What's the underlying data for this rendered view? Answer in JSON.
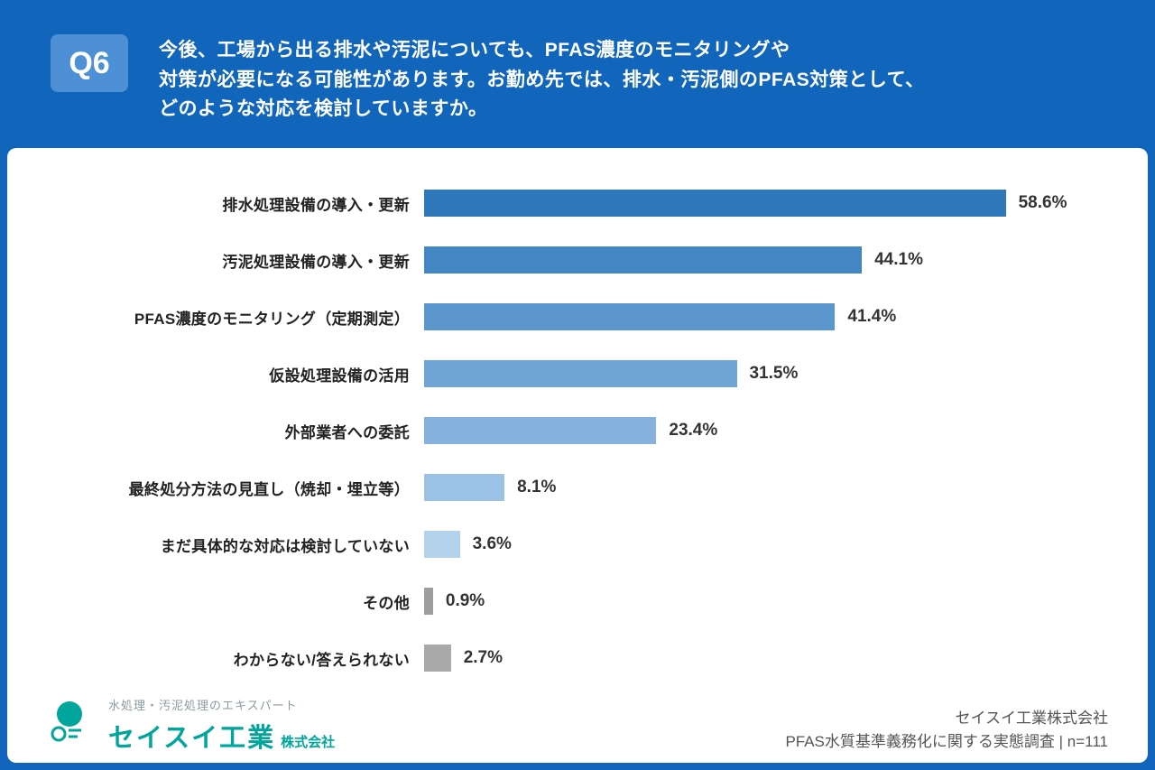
{
  "header": {
    "q_label": "Q6",
    "question": "今後、工場から出る排水や汚泥についても、PFAS濃度のモニタリングや\n対策が必要になる可能性があります。お勤め先では、排水・汚泥側のPFAS対策として、\nどのような対応を検討していますか。"
  },
  "chart_data": {
    "type": "bar",
    "orientation": "horizontal",
    "title": "",
    "xlabel": "",
    "ylabel": "",
    "xlim": [
      0,
      60
    ],
    "grid": false,
    "legend": false,
    "categories": [
      "排水処理設備の導入・更新",
      "汚泥処理設備の導入・更新",
      "PFAS濃度のモニタリング（定期測定）",
      "仮設処理設備の活用",
      "外部業者への委託",
      "最終処分方法の見直し（焼却・埋立等）",
      "まだ具体的な対応は検討していない",
      "その他",
      "わからない/答えられない"
    ],
    "values": [
      58.6,
      44.1,
      41.4,
      31.5,
      23.4,
      8.1,
      3.6,
      0.9,
      2.7
    ],
    "value_labels": [
      "58.6%",
      "44.1%",
      "41.4%",
      "31.5%",
      "23.4%",
      "8.1%",
      "3.6%",
      "0.9%",
      "2.7%"
    ],
    "bar_colors": [
      "#2E77B8",
      "#4286C4",
      "#5B97CC",
      "#6FA5D6",
      "#84B2DC",
      "#9CC2E5",
      "#B3D2EC",
      "#9E9E9E",
      "#A9A9A9"
    ]
  },
  "footer": {
    "logo_tagline": "水処理・汚泥処理のエキスパート",
    "logo_name": "セイスイ工業",
    "logo_suffix": "株式会社",
    "source_line1": "セイスイ工業株式会社",
    "source_line2": "PFAS水質基準義務化に関する実態調査 | n=111"
  },
  "colors": {
    "background": "#1166BB",
    "q_badge": "#4D90D5",
    "brand_teal": "#00A59B"
  }
}
